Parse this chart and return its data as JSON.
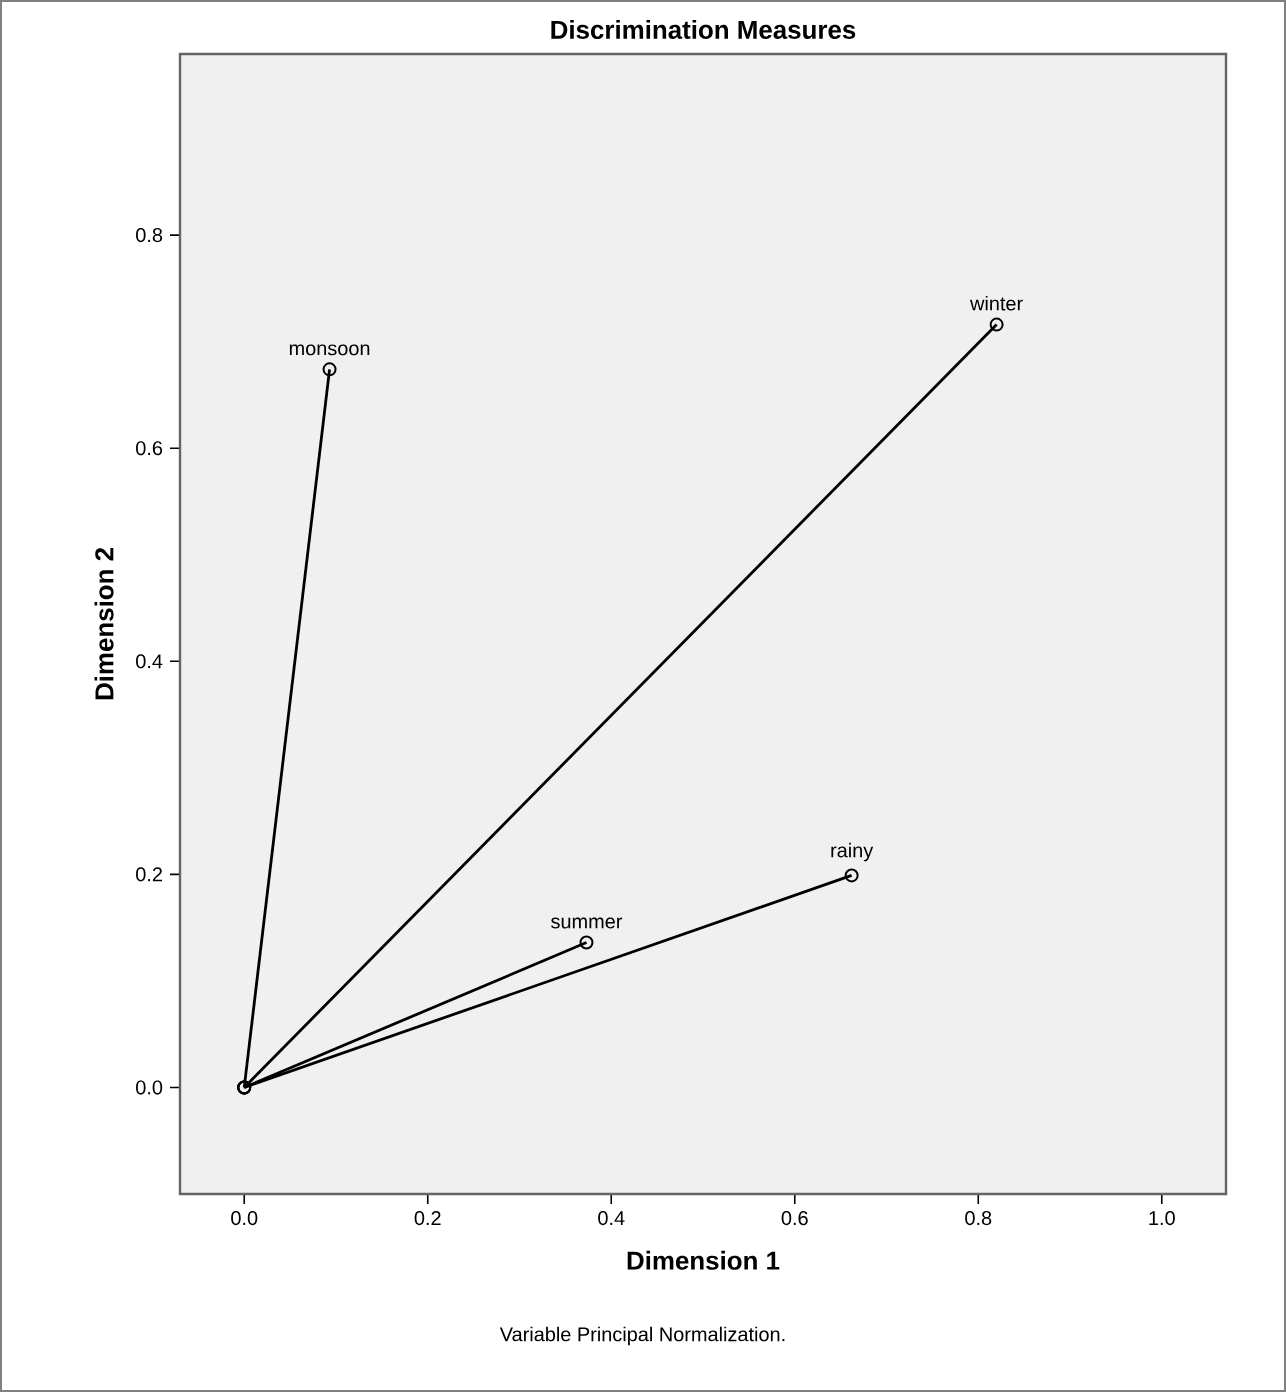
{
  "chart_data": {
    "type": "line",
    "title": "Discrimination Measures",
    "xlabel": "Dimension 1",
    "ylabel": "Dimension 2",
    "annotations": [
      "Variable Principal Normalization."
    ],
    "xlim": [
      -0.07,
      1.07
    ],
    "ylim": [
      -0.1,
      0.97
    ],
    "xticks": [
      {
        "value": 0,
        "label": "0.0"
      },
      0.2,
      0.4,
      0.6,
      0.8,
      {
        "value": 1,
        "label": "1.0"
      }
    ],
    "yticks": [
      {
        "value": 0,
        "label": "0.0"
      },
      0.2,
      0.4,
      0.6,
      0.8
    ],
    "marker": "circle",
    "line_style": "solid",
    "series": [
      {
        "name": "monsoon",
        "color": "#000000",
        "x": [
          0,
          0.093
        ],
        "values": [
          0,
          0.674
        ]
      },
      {
        "name": "winter",
        "color": "#000000",
        "x": [
          0,
          0.82
        ],
        "values": [
          0,
          0.716
        ]
      },
      {
        "name": "summer",
        "color": "#000000",
        "x": [
          0,
          0.373
        ],
        "values": [
          0,
          0.136
        ]
      },
      {
        "name": "rainy",
        "color": "#000000",
        "x": [
          0,
          0.662
        ],
        "values": [
          0,
          0.199
        ]
      }
    ]
  }
}
